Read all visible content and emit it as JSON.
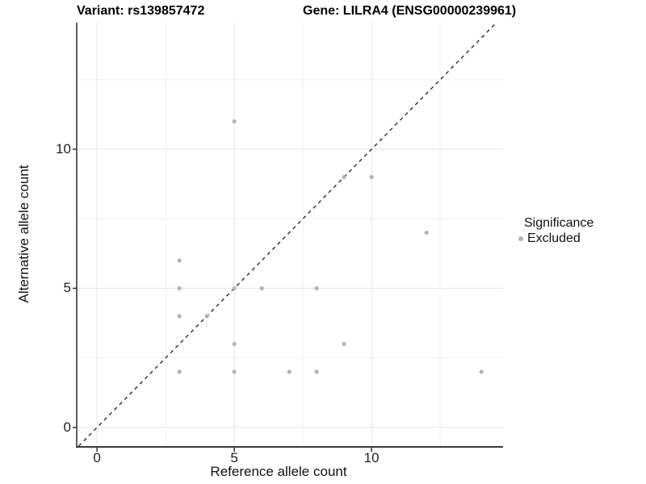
{
  "chart_data": {
    "type": "scatter",
    "titles": {
      "left": "Variant: rs139857472",
      "right": "Gene: LILRA4 (ENSG00000239961)"
    },
    "xlabel": "Reference allele count",
    "ylabel": "Alternative allele count",
    "xlim": [
      -0.74,
      14.79
    ],
    "ylim": [
      -0.67,
      14.55
    ],
    "x_ticks": [
      0,
      5,
      10
    ],
    "y_ticks": [
      0,
      5,
      10
    ],
    "x_minor_gridlines": [
      2.5,
      7.5,
      12.5
    ],
    "y_minor_gridlines": [
      2.5,
      7.5,
      12.5
    ],
    "grid": "on",
    "identity_line": {
      "equation": "y = x",
      "style": "dashed",
      "color": "#1c1c1c"
    },
    "legend": {
      "position": "right",
      "title": "Significance",
      "items": [
        {
          "label": "Excluded",
          "color": "#b3b3b3"
        }
      ]
    },
    "series": [
      {
        "name": "Excluded",
        "color": "#b3b3b3",
        "points": [
          [
            3,
            2
          ],
          [
            3,
            4
          ],
          [
            3,
            5
          ],
          [
            3,
            6
          ],
          [
            4,
            4
          ],
          [
            5,
            2
          ],
          [
            5,
            3
          ],
          [
            5,
            5
          ],
          [
            5,
            11
          ],
          [
            6,
            5
          ],
          [
            7,
            2
          ],
          [
            8,
            2
          ],
          [
            8,
            5
          ],
          [
            9,
            3
          ],
          [
            9,
            9
          ],
          [
            10,
            9
          ],
          [
            12,
            7
          ],
          [
            14,
            2
          ]
        ]
      }
    ],
    "style_colors": {
      "major_gridline": "#e6e6e6",
      "minor_gridline": "#f2f2f2",
      "axis_line": "#3a3a3a",
      "tick_mark": "#333333",
      "panel_background": "#ffffff"
    }
  }
}
